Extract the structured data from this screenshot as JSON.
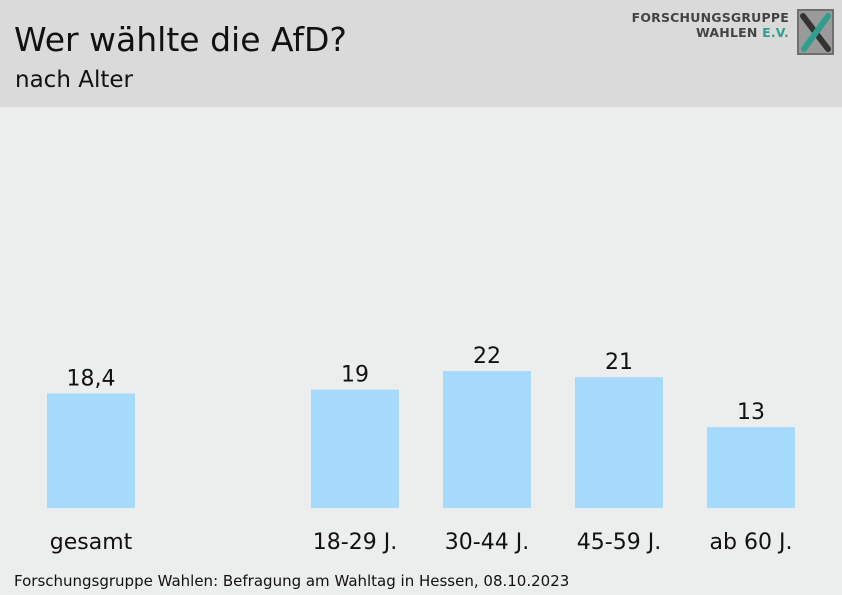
{
  "header": {
    "title": "Wer wählte die AfD?",
    "subtitle": "nach Alter",
    "logo_line1": "FORSCHUNGSGRUPPE",
    "logo_line2a": "WAHLEN ",
    "logo_line2b": "E.V."
  },
  "colors": {
    "bar": "#a6dafd",
    "header_bg": "#dadada",
    "page_bg": "#ebeeed",
    "logo_accent": "#2f9e8f"
  },
  "chart_data": {
    "type": "bar",
    "title": "Wer wählte die AfD?",
    "subtitle": "nach Alter",
    "categories": [
      "gesamt",
      "18-29 J.",
      "30-44 J.",
      "45-59 J.",
      "ab 60 J."
    ],
    "values": [
      18.4,
      19,
      22,
      21,
      13
    ],
    "value_labels": [
      "18,4",
      "19",
      "22",
      "21",
      "13"
    ],
    "xlabel": "",
    "ylabel": "",
    "ylim": [
      0,
      22
    ],
    "grid": false,
    "legend": "none"
  },
  "footer": {
    "source": "Forschungsgruppe Wahlen: Befragung am Wahltag in Hessen, 08.10.2023"
  }
}
